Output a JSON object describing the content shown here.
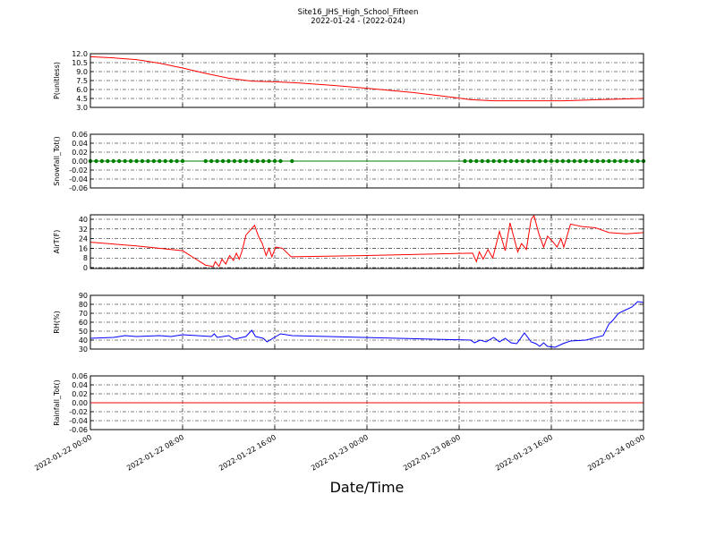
{
  "title": "Site16_JHS_High_School_Fifteen",
  "subtitle": "2022-01-24 - (2022-024)",
  "x_label": "Date/Time",
  "xlim": [
    "2022-01-22 00:00",
    "2022-01-24 00:00"
  ],
  "xticks": [
    "2022-01-22 00:00",
    "2022-01-22 08:00",
    "2022-01-22 16:00",
    "2022-01-23 00:00",
    "2022-01-23 08:00",
    "2022-01-23 16:00",
    "2022-01-24 00:00"
  ],
  "grid": true,
  "chart_data": [
    {
      "type": "line",
      "y_label": "P(unitless)",
      "ylim": [
        3,
        12
      ],
      "yticks": [
        {
          "value": 3,
          "label": "3.0"
        },
        {
          "value": 4.5,
          "label": "4.5"
        },
        {
          "value": 6,
          "label": "6.0"
        },
        {
          "value": 7.5,
          "label": "7.5"
        },
        {
          "value": 9,
          "label": "9.0"
        },
        {
          "value": 10.5,
          "label": "10.5"
        },
        {
          "value": 12,
          "label": "12.0"
        }
      ],
      "x": [
        "2022-01-22 00:00",
        "2022-01-22 02:00",
        "2022-01-22 04:00",
        "2022-01-22 06:00",
        "2022-01-22 08:00",
        "2022-01-22 10:00",
        "2022-01-22 12:00",
        "2022-01-22 14:00",
        "2022-01-22 16:00",
        "2022-01-22 18:00",
        "2022-01-22 21:00",
        "2022-01-23 00:00",
        "2022-01-23 04:00",
        "2022-01-23 07:00",
        "2022-01-23 09:00",
        "2022-01-23 11:00",
        "2022-01-23 14:00",
        "2022-01-23 17:00",
        "2022-01-23 20:00",
        "2022-01-24 00:00"
      ],
      "series": [
        {
          "color": "#ff0000",
          "values": [
            11.5,
            11.3,
            11.0,
            10.4,
            9.6,
            8.7,
            7.9,
            7.4,
            7.3,
            7.1,
            6.7,
            6.2,
            5.5,
            4.8,
            4.3,
            4.1,
            4.1,
            4.1,
            4.3,
            4.5
          ]
        }
      ]
    },
    {
      "type": "line",
      "y_label": "Snowfall_Tot()",
      "markers": true,
      "ylim": [
        -0.06,
        0.06
      ],
      "yticks": [
        -0.06,
        -0.04,
        -0.02,
        {
          "value": 0,
          "label": "0.00"
        },
        0.02,
        0.04,
        0.06
      ],
      "x": [
        "2022-01-22 00:00",
        "2022-01-22 00:30",
        "2022-01-22 01:00",
        "2022-01-22 01:30",
        "2022-01-22 02:00",
        "2022-01-22 02:30",
        "2022-01-22 03:00",
        "2022-01-22 03:30",
        "2022-01-22 04:00",
        "2022-01-22 04:30",
        "2022-01-22 05:00",
        "2022-01-22 05:30",
        "2022-01-22 06:00",
        "2022-01-22 06:30",
        "2022-01-22 07:00",
        "2022-01-22 07:30",
        "2022-01-22 08:00",
        "2022-01-22 10:00",
        "2022-01-22 10:30",
        "2022-01-22 11:00",
        "2022-01-22 11:30",
        "2022-01-22 12:00",
        "2022-01-22 12:30",
        "2022-01-22 13:00",
        "2022-01-22 13:30",
        "2022-01-22 14:00",
        "2022-01-22 14:30",
        "2022-01-22 15:00",
        "2022-01-22 15:30",
        "2022-01-22 16:00",
        "2022-01-22 16:30",
        "2022-01-22 17:30",
        "2022-01-23 08:30",
        "2022-01-23 09:00",
        "2022-01-23 09:30",
        "2022-01-23 10:00",
        "2022-01-23 10:30",
        "2022-01-23 11:00",
        "2022-01-23 11:30",
        "2022-01-23 12:00",
        "2022-01-23 12:30",
        "2022-01-23 13:00",
        "2022-01-23 13:30",
        "2022-01-23 14:00",
        "2022-01-23 14:30",
        "2022-01-23 15:00",
        "2022-01-23 15:30",
        "2022-01-23 16:00",
        "2022-01-23 16:30",
        "2022-01-23 17:00",
        "2022-01-23 17:30",
        "2022-01-23 18:00",
        "2022-01-23 18:30",
        "2022-01-23 19:00",
        "2022-01-23 19:30",
        "2022-01-23 20:00",
        "2022-01-23 20:30",
        "2022-01-23 21:00",
        "2022-01-23 21:30",
        "2022-01-23 22:00",
        "2022-01-23 22:30",
        "2022-01-23 23:00",
        "2022-01-23 23:30",
        "2022-01-24 00:00"
      ],
      "series": [
        {
          "color": "#008000",
          "values": [
            0,
            0,
            0,
            0,
            0,
            0,
            0,
            0,
            0,
            0,
            0,
            0,
            0,
            0,
            0,
            0,
            0,
            0,
            0,
            0,
            0,
            0,
            0,
            0,
            0,
            0,
            0,
            0,
            0,
            0,
            0,
            0,
            0,
            0,
            0,
            0,
            0,
            0,
            0,
            0,
            0,
            0,
            0,
            0,
            0,
            0,
            0,
            0,
            0,
            0,
            0,
            0,
            0,
            0,
            0,
            0,
            0,
            0,
            0,
            0,
            0,
            0,
            0,
            0
          ]
        }
      ]
    },
    {
      "type": "line",
      "y_label": "AirT(F)",
      "ylim": [
        -0.7,
        43.7
      ],
      "yticks": [
        0,
        8,
        16,
        24,
        32,
        40
      ],
      "x": [
        "2022-01-22 00:00",
        "2022-01-22 04:00",
        "2022-01-22 08:00",
        "2022-01-22 09:00",
        "2022-01-22 10:00",
        "2022-01-22 10:40",
        "2022-01-22 10:50",
        "2022-01-22 11:10",
        "2022-01-22 11:25",
        "2022-01-22 11:45",
        "2022-01-22 12:05",
        "2022-01-22 12:25",
        "2022-01-22 12:40",
        "2022-01-22 12:55",
        "2022-01-22 13:10",
        "2022-01-22 13:30",
        "2022-01-22 14:15",
        "2022-01-22 14:35",
        "2022-01-22 14:55",
        "2022-01-22 15:15",
        "2022-01-22 15:30",
        "2022-01-22 15:45",
        "2022-01-22 16:05",
        "2022-01-22 16:40",
        "2022-01-22 17:25",
        "2022-01-23 00:00",
        "2022-01-23 09:10",
        "2022-01-23 09:30",
        "2022-01-23 09:45",
        "2022-01-23 10:05",
        "2022-01-23 10:30",
        "2022-01-23 10:55",
        "2022-01-23 11:30",
        "2022-01-23 12:00",
        "2022-01-23 12:25",
        "2022-01-23 13:05",
        "2022-01-23 13:25",
        "2022-01-23 13:50",
        "2022-01-23 14:15",
        "2022-01-23 14:30",
        "2022-01-23 14:55",
        "2022-01-23 15:20",
        "2022-01-23 15:40",
        "2022-01-23 16:05",
        "2022-01-23 16:30",
        "2022-01-23 16:50",
        "2022-01-23 17:05",
        "2022-01-23 17:40",
        "2022-01-23 18:40",
        "2022-01-23 19:50",
        "2022-01-23 21:00",
        "2022-01-23 22:30",
        "2022-01-24 00:00"
      ],
      "series": [
        {
          "color": "#ff0000",
          "values": [
            21,
            18,
            14,
            8,
            2,
            1,
            5,
            1,
            7,
            3,
            10,
            6,
            12,
            7,
            14,
            27,
            35,
            26,
            20,
            10,
            16,
            9,
            17,
            16,
            9,
            10,
            12,
            5,
            13,
            7,
            15,
            8,
            30,
            14,
            37,
            13,
            20,
            15,
            40,
            43,
            28,
            17,
            26,
            22,
            17,
            24,
            17,
            36,
            34,
            33,
            29,
            28,
            29
          ]
        }
      ]
    },
    {
      "type": "line",
      "y_label": "RH(%)",
      "ylim": [
        30,
        90
      ],
      "yticks": [
        30,
        40,
        50,
        60,
        70,
        80,
        90
      ],
      "x": [
        "2022-01-22 00:00",
        "2022-01-22 02:00",
        "2022-01-22 03:00",
        "2022-01-22 04:00",
        "2022-01-22 06:00",
        "2022-01-22 07:00",
        "2022-01-22 08:00",
        "2022-01-22 10:30",
        "2022-01-22 10:45",
        "2022-01-22 11:00",
        "2022-01-22 12:00",
        "2022-01-22 12:30",
        "2022-01-22 13:30",
        "2022-01-22 14:00",
        "2022-01-22 14:20",
        "2022-01-22 15:00",
        "2022-01-22 15:20",
        "2022-01-22 15:50",
        "2022-01-22 16:30",
        "2022-01-22 17:30",
        "2022-01-23 09:00",
        "2022-01-23 09:20",
        "2022-01-23 09:50",
        "2022-01-23 10:20",
        "2022-01-23 11:00",
        "2022-01-23 11:30",
        "2022-01-23 12:00",
        "2022-01-23 12:30",
        "2022-01-23 13:00",
        "2022-01-23 13:40",
        "2022-01-23 14:15",
        "2022-01-23 14:40",
        "2022-01-23 15:00",
        "2022-01-23 15:20",
        "2022-01-23 15:40",
        "2022-01-23 16:20",
        "2022-01-23 17:00",
        "2022-01-23 17:40",
        "2022-01-23 19:00",
        "2022-01-23 20:30",
        "2022-01-23 21:00",
        "2022-01-23 21:20",
        "2022-01-23 21:50",
        "2022-01-23 22:20",
        "2022-01-23 23:00",
        "2022-01-23 23:30",
        "2022-01-24 00:00"
      ],
      "series": [
        {
          "color": "#0000ff",
          "values": [
            42,
            43,
            45,
            44,
            45,
            44,
            46,
            44,
            47,
            43,
            45,
            41,
            44,
            51,
            44,
            42,
            38,
            42,
            47,
            45,
            40,
            37,
            40,
            38,
            43,
            38,
            42,
            37,
            36,
            48,
            38,
            36,
            33,
            37,
            33,
            32,
            36,
            39,
            40,
            45,
            58,
            62,
            70,
            73,
            77,
            83,
            82
          ]
        }
      ]
    },
    {
      "type": "line",
      "y_label": "Rainfall_Tot()",
      "ylim": [
        -0.06,
        0.06
      ],
      "yticks": [
        -0.06,
        -0.04,
        -0.02,
        {
          "value": 0,
          "label": "0.00"
        },
        0.02,
        0.04,
        0.06
      ],
      "x": [
        "2022-01-22 00:00",
        "2022-01-24 00:00"
      ],
      "series": [
        {
          "color": "#ff0000",
          "values": [
            0,
            0
          ]
        }
      ]
    }
  ]
}
